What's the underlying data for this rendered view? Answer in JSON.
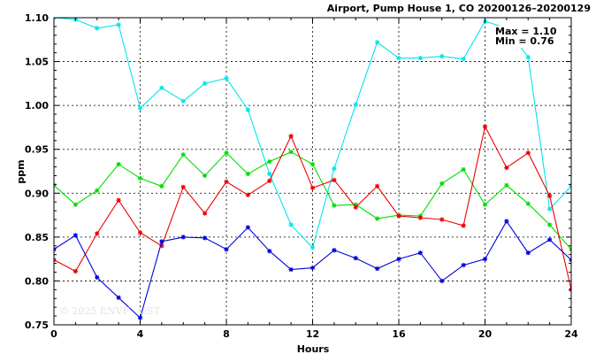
{
  "chart_data": {
    "type": "line",
    "title": "Airport, Pump House 1, CO 20200126–20200129",
    "xlabel": "Hours",
    "ylabel": "ppm",
    "xlim": [
      0,
      24
    ],
    "ylim": [
      0.75,
      1.1
    ],
    "xticks": [
      0,
      4,
      8,
      12,
      16,
      20,
      24
    ],
    "yticks": [
      0.75,
      0.8,
      0.85,
      0.9,
      0.95,
      1.0,
      1.05,
      1.1
    ],
    "grid": true,
    "legend": "none",
    "max_text": "Max = 1.10",
    "min_text": "Min = 0.76",
    "watermark": "© 2025  ENVF   UST",
    "x": [
      0,
      1,
      2,
      3,
      4,
      5,
      6,
      7,
      8,
      9,
      10,
      11,
      12,
      13,
      14,
      15,
      16,
      17,
      18,
      19,
      20,
      21,
      22,
      23,
      24
    ],
    "series": [
      {
        "color": "#00e5ee",
        "values": [
          1.1,
          1.098,
          1.088,
          1.092,
          0.997,
          1.02,
          1.005,
          1.025,
          1.031,
          0.995,
          0.922,
          0.864,
          0.838,
          0.928,
          1.001,
          1.072,
          1.054,
          1.054,
          1.056,
          1.053,
          1.096,
          1.088,
          1.055,
          0.882,
          0.908
        ]
      },
      {
        "color": "#00dd00",
        "values": [
          0.909,
          0.887,
          0.903,
          0.933,
          0.917,
          0.908,
          0.944,
          0.92,
          0.946,
          0.922,
          0.936,
          0.947,
          0.933,
          0.886,
          0.887,
          0.871,
          0.875,
          0.874,
          0.911,
          0.927,
          0.887,
          0.909,
          0.888,
          0.864,
          0.836
        ]
      },
      {
        "color": "#ee0000",
        "values": [
          0.824,
          0.811,
          0.854,
          0.892,
          0.855,
          0.84,
          0.907,
          0.877,
          0.913,
          0.898,
          0.914,
          0.965,
          0.906,
          0.915,
          0.884,
          0.908,
          0.874,
          0.872,
          0.87,
          0.863,
          0.976,
          0.929,
          0.946,
          0.897,
          0.79
        ]
      },
      {
        "color": "#0000dd",
        "values": [
          0.836,
          0.852,
          0.804,
          0.781,
          0.758,
          0.845,
          0.85,
          0.849,
          0.836,
          0.861,
          0.834,
          0.813,
          0.815,
          0.835,
          0.826,
          0.814,
          0.825,
          0.832,
          0.8,
          0.818,
          0.825,
          0.868,
          0.832,
          0.847,
          0.824
        ]
      }
    ]
  }
}
